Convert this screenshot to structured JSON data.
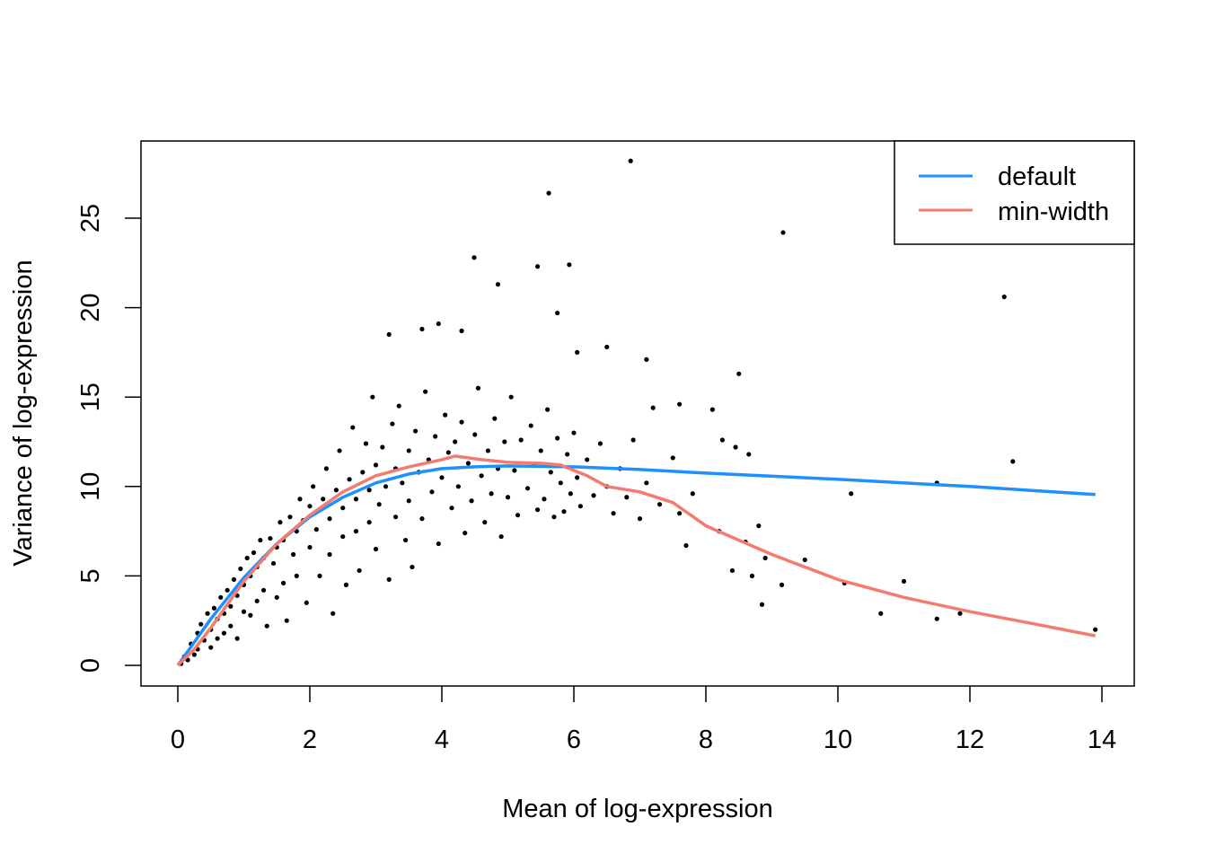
{
  "chart_data": {
    "type": "scatter",
    "title": "",
    "xlabel": "Mean of log-expression",
    "ylabel": "Variance of log-expression",
    "xlim": [
      0,
      14
    ],
    "ylim": [
      0,
      28.5
    ],
    "xticks": [
      "0",
      "2",
      "4",
      "6",
      "8",
      "10",
      "12",
      "14"
    ],
    "yticks": [
      "0",
      "5",
      "10",
      "15",
      "20",
      "25"
    ],
    "grid": false,
    "legend_position": "top-right",
    "points_color": "#000000",
    "points": [
      [
        6.86,
        28.2
      ],
      [
        5.62,
        26.4
      ],
      [
        9.17,
        24.2
      ],
      [
        4.49,
        22.8
      ],
      [
        5.45,
        22.3
      ],
      [
        5.93,
        22.4
      ],
      [
        4.85,
        21.3
      ],
      [
        12.52,
        20.6
      ],
      [
        5.75,
        19.7
      ],
      [
        3.95,
        19.1
      ],
      [
        3.7,
        18.8
      ],
      [
        4.3,
        18.7
      ],
      [
        3.2,
        18.5
      ],
      [
        6.05,
        17.5
      ],
      [
        6.5,
        17.8
      ],
      [
        7.1,
        17.1
      ],
      [
        8.5,
        16.3
      ],
      [
        12.65,
        11.4
      ],
      [
        13.9,
        2.0
      ],
      [
        11.5,
        10.2
      ],
      [
        10.2,
        9.6
      ],
      [
        11.0,
        4.7
      ],
      [
        10.65,
        2.9
      ],
      [
        11.5,
        2.6
      ],
      [
        11.85,
        2.9
      ],
      [
        8.85,
        3.4
      ],
      [
        9.5,
        5.9
      ],
      [
        9.15,
        4.5
      ],
      [
        10.1,
        4.6
      ],
      [
        8.45,
        12.2
      ],
      [
        8.1,
        14.3
      ],
      [
        7.6,
        14.6
      ],
      [
        7.2,
        14.4
      ],
      [
        8.25,
        12.6
      ],
      [
        0.05,
        0.1
      ],
      [
        0.1,
        0.5
      ],
      [
        0.15,
        0.3
      ],
      [
        0.2,
        1.2
      ],
      [
        0.25,
        0.6
      ],
      [
        0.3,
        1.8
      ],
      [
        0.3,
        0.9
      ],
      [
        0.35,
        2.3
      ],
      [
        0.4,
        1.4
      ],
      [
        0.45,
        2.9
      ],
      [
        0.5,
        2.0
      ],
      [
        0.5,
        1.0
      ],
      [
        0.55,
        3.2
      ],
      [
        0.6,
        2.6
      ],
      [
        0.6,
        1.5
      ],
      [
        0.65,
        3.8
      ],
      [
        0.7,
        2.9
      ],
      [
        0.7,
        1.8
      ],
      [
        0.75,
        4.2
      ],
      [
        0.8,
        3.3
      ],
      [
        0.8,
        2.2
      ],
      [
        0.85,
        4.8
      ],
      [
        0.9,
        3.9
      ],
      [
        0.9,
        1.5
      ],
      [
        0.95,
        5.4
      ],
      [
        1.0,
        4.5
      ],
      [
        1.0,
        3.0
      ],
      [
        1.05,
        6.0
      ],
      [
        1.1,
        5.0
      ],
      [
        1.1,
        2.8
      ],
      [
        1.15,
        6.3
      ],
      [
        1.2,
        5.5
      ],
      [
        1.2,
        3.6
      ],
      [
        1.25,
        7.0
      ],
      [
        1.3,
        6.0
      ],
      [
        1.3,
        4.2
      ],
      [
        1.35,
        2.2
      ],
      [
        1.4,
        7.1
      ],
      [
        1.45,
        5.7
      ],
      [
        1.5,
        6.6
      ],
      [
        1.5,
        3.8
      ],
      [
        1.55,
        8.0
      ],
      [
        1.6,
        7.0
      ],
      [
        1.6,
        4.6
      ],
      [
        1.65,
        2.5
      ],
      [
        1.7,
        8.3
      ],
      [
        1.75,
        6.2
      ],
      [
        1.8,
        7.5
      ],
      [
        1.8,
        5.0
      ],
      [
        1.85,
        9.3
      ],
      [
        1.9,
        8.1
      ],
      [
        1.95,
        3.5
      ],
      [
        2.0,
        8.9
      ],
      [
        2.0,
        6.6
      ],
      [
        2.05,
        10.0
      ],
      [
        2.1,
        7.6
      ],
      [
        2.15,
        5.0
      ],
      [
        2.2,
        9.3
      ],
      [
        2.25,
        11.0
      ],
      [
        2.3,
        8.2
      ],
      [
        2.3,
        6.2
      ],
      [
        2.35,
        2.9
      ],
      [
        2.4,
        9.8
      ],
      [
        2.45,
        12.0
      ],
      [
        2.5,
        8.8
      ],
      [
        2.5,
        7.2
      ],
      [
        2.55,
        4.5
      ],
      [
        2.6,
        10.4
      ],
      [
        2.65,
        13.3
      ],
      [
        2.7,
        9.3
      ],
      [
        2.7,
        7.5
      ],
      [
        2.75,
        5.3
      ],
      [
        2.8,
        10.8
      ],
      [
        2.85,
        12.4
      ],
      [
        2.9,
        9.8
      ],
      [
        2.9,
        8.0
      ],
      [
        2.95,
        15.0
      ],
      [
        3.0,
        11.2
      ],
      [
        3.0,
        6.5
      ],
      [
        3.05,
        9.0
      ],
      [
        3.1,
        12.2
      ],
      [
        3.15,
        10.0
      ],
      [
        3.2,
        4.8
      ],
      [
        3.25,
        13.5
      ],
      [
        3.3,
        11.0
      ],
      [
        3.3,
        8.3
      ],
      [
        3.35,
        14.5
      ],
      [
        3.4,
        10.2
      ],
      [
        3.45,
        7.0
      ],
      [
        3.5,
        12.0
      ],
      [
        3.5,
        9.2
      ],
      [
        3.55,
        5.5
      ],
      [
        3.6,
        13.1
      ],
      [
        3.65,
        10.8
      ],
      [
        3.7,
        8.2
      ],
      [
        3.75,
        15.3
      ],
      [
        3.8,
        11.5
      ],
      [
        3.85,
        9.7
      ],
      [
        3.9,
        12.8
      ],
      [
        3.95,
        6.8
      ],
      [
        4.0,
        10.5
      ],
      [
        4.05,
        14.0
      ],
      [
        4.1,
        11.9
      ],
      [
        4.15,
        8.8
      ],
      [
        4.2,
        12.5
      ],
      [
        4.25,
        10.0
      ],
      [
        4.3,
        13.6
      ],
      [
        4.35,
        7.4
      ],
      [
        4.4,
        11.3
      ],
      [
        4.45,
        9.2
      ],
      [
        4.5,
        12.9
      ],
      [
        4.55,
        15.5
      ],
      [
        4.6,
        10.6
      ],
      [
        4.65,
        8.0
      ],
      [
        4.7,
        12.0
      ],
      [
        4.75,
        9.6
      ],
      [
        4.8,
        13.8
      ],
      [
        4.85,
        11.0
      ],
      [
        4.9,
        7.2
      ],
      [
        4.95,
        12.5
      ],
      [
        5.0,
        9.4
      ],
      [
        5.05,
        15.0
      ],
      [
        5.1,
        10.9
      ],
      [
        5.15,
        8.4
      ],
      [
        5.2,
        12.6
      ],
      [
        5.3,
        9.9
      ],
      [
        5.35,
        13.4
      ],
      [
        5.4,
        11.2
      ],
      [
        5.45,
        8.7
      ],
      [
        5.5,
        12.0
      ],
      [
        5.55,
        9.3
      ],
      [
        5.6,
        14.3
      ],
      [
        5.65,
        10.8
      ],
      [
        5.7,
        8.3
      ],
      [
        5.75,
        12.7
      ],
      [
        5.8,
        10.2
      ],
      [
        5.85,
        8.6
      ],
      [
        5.9,
        11.8
      ],
      [
        5.95,
        9.6
      ],
      [
        6.0,
        13.0
      ],
      [
        6.05,
        10.5
      ],
      [
        6.1,
        8.9
      ],
      [
        6.2,
        11.5
      ],
      [
        6.3,
        9.5
      ],
      [
        6.4,
        12.4
      ],
      [
        6.5,
        10.0
      ],
      [
        6.6,
        8.5
      ],
      [
        6.7,
        11.0
      ],
      [
        6.8,
        9.4
      ],
      [
        6.9,
        12.6
      ],
      [
        7.0,
        8.2
      ],
      [
        7.1,
        10.2
      ],
      [
        7.3,
        9.0
      ],
      [
        7.5,
        11.6
      ],
      [
        7.6,
        8.5
      ],
      [
        7.8,
        9.6
      ],
      [
        7.7,
        6.7
      ],
      [
        8.2,
        7.5
      ],
      [
        8.4,
        5.3
      ],
      [
        8.7,
        5.0
      ],
      [
        8.6,
        6.9
      ],
      [
        8.8,
        7.8
      ],
      [
        8.9,
        6.0
      ],
      [
        8.65,
        11.8
      ]
    ],
    "series": [
      {
        "name": "default",
        "color": "#1E90FF",
        "x": [
          0,
          0.25,
          0.5,
          1,
          1.5,
          2,
          2.5,
          3,
          3.5,
          4,
          4.5,
          5,
          6,
          7,
          8,
          10,
          12,
          13.9
        ],
        "y": [
          0,
          1.3,
          2.6,
          4.9,
          6.8,
          8.3,
          9.4,
          10.2,
          10.7,
          11.0,
          11.1,
          11.15,
          11.1,
          10.95,
          10.75,
          10.4,
          10.0,
          9.55
        ]
      },
      {
        "name": "min-width",
        "color": "#F37B6F",
        "x": [
          0,
          0.25,
          0.5,
          1,
          1.5,
          2,
          2.5,
          3,
          3.5,
          4,
          4.2,
          4.6,
          5,
          5.5,
          5.8,
          6.2,
          6.5,
          7,
          7.5,
          8,
          8.5,
          9,
          10,
          11,
          12,
          13,
          13.9
        ],
        "y": [
          0,
          0.9,
          2.1,
          4.7,
          6.8,
          8.4,
          9.7,
          10.6,
          11.1,
          11.5,
          11.7,
          11.5,
          11.35,
          11.3,
          11.2,
          10.6,
          10.0,
          9.7,
          9.1,
          7.8,
          7.0,
          6.2,
          4.8,
          3.8,
          3.0,
          2.3,
          1.65
        ]
      }
    ]
  }
}
